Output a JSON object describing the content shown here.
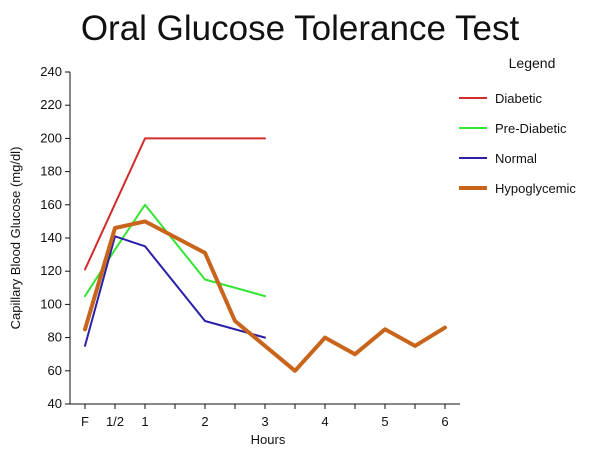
{
  "chart_data": {
    "type": "line",
    "title": "Oral Glucose Tolerance Test",
    "xlabel": "Hours",
    "ylabel": "Capillary Blood Glucose (mg/dl)",
    "ylim": [
      40,
      240
    ],
    "yticks": [
      40,
      60,
      80,
      100,
      120,
      140,
      160,
      180,
      200,
      220,
      240
    ],
    "xlim": [
      -0.25,
      6.25
    ],
    "xticks": [
      {
        "value": 0,
        "label": "F"
      },
      {
        "value": 0.5,
        "label": "1/2"
      },
      {
        "value": 1,
        "label": "1"
      },
      {
        "value": 2,
        "label": "2"
      },
      {
        "value": 3,
        "label": "3"
      },
      {
        "value": 4,
        "label": "4"
      },
      {
        "value": 5,
        "label": "5"
      },
      {
        "value": 6,
        "label": "6"
      }
    ],
    "grid": false,
    "legend": {
      "title": "Legend",
      "position": "right"
    },
    "series": [
      {
        "name": "Diabetic",
        "color": "#d42b2b",
        "width": 2,
        "x": [
          0,
          1,
          2,
          3
        ],
        "y": [
          121,
          200,
          200,
          200
        ]
      },
      {
        "name": "Pre-Diabetic",
        "color": "#33e633",
        "width": 2,
        "x": [
          0,
          0.5,
          1,
          2,
          3
        ],
        "y": [
          105,
          133,
          160,
          115,
          105
        ]
      },
      {
        "name": "Normal",
        "color": "#2a1fa8",
        "width": 2,
        "x": [
          0,
          0.5,
          1,
          2,
          3
        ],
        "y": [
          75,
          141,
          135,
          90,
          80
        ]
      },
      {
        "name": "Hypoglycemic",
        "color": "#c8651a",
        "width": 4,
        "x": [
          0,
          0.5,
          1,
          2,
          2.5,
          3.5,
          4,
          4.5,
          5,
          5.5,
          6
        ],
        "y": [
          85,
          146,
          150,
          131,
          90,
          60,
          80,
          70,
          85,
          75,
          86
        ]
      }
    ]
  }
}
